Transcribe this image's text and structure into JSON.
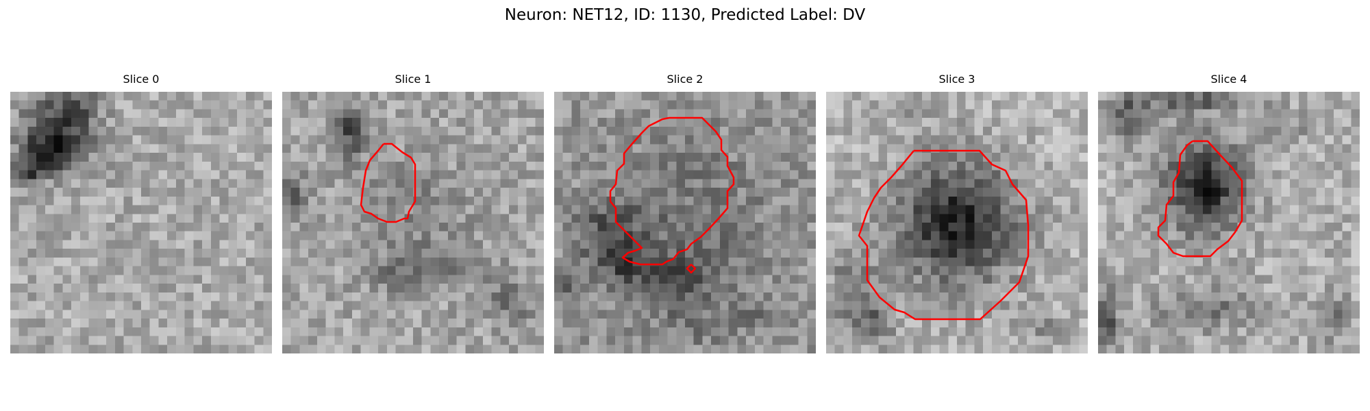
{
  "figure": {
    "title": "Neuron: NET12, ID: 1130, Predicted Label: DV"
  },
  "contour_color": "#ff0000",
  "panels": [
    {
      "title": "Slice 0",
      "has_contour": false
    },
    {
      "title": "Slice 1",
      "has_contour": true
    },
    {
      "title": "Slice 2",
      "has_contour": true
    },
    {
      "title": "Slice 3",
      "has_contour": true
    },
    {
      "title": "Slice 4",
      "has_contour": true
    }
  ]
}
